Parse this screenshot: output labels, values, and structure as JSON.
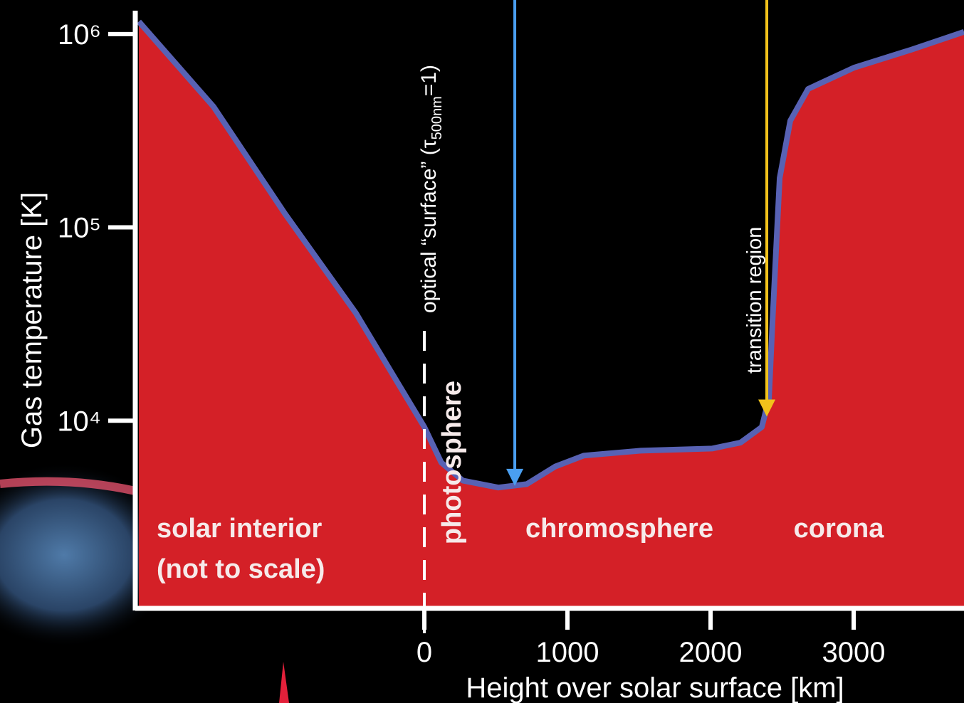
{
  "chart_data": {
    "type": "area",
    "x_label": "Height over solar surface [km]",
    "y_label": "Gas temperature [K]",
    "yscale": "log",
    "x": [
      -1995,
      -1473,
      -975,
      -478,
      -179,
      0,
      119,
      269,
      517,
      716,
      915,
      1114,
      1512,
      2010,
      2209,
      2358,
      2408,
      2433,
      2483,
      2557,
      2682,
      3005,
      3403,
      3771
    ],
    "values": [
      1160000,
      421000,
      118000,
      36000,
      15400,
      9270,
      6070,
      4900,
      4510,
      4700,
      5800,
      6600,
      7000,
      7180,
      7700,
      9270,
      13000,
      33000,
      180000,
      356000,
      520000,
      671000,
      830000,
      1026000
    ],
    "color": "#d42027",
    "line_color": "#5862b4",
    "xlim": [
      -2020,
      3771
    ],
    "ylim": [
      1070,
      1500000
    ],
    "xticks": [
      0,
      1000,
      2000,
      3000
    ],
    "yticks": [
      {
        "value": 10000,
        "label": "10⁴"
      },
      {
        "value": 100000,
        "label": "10⁵"
      },
      {
        "value": 1000000,
        "label": "10⁶"
      }
    ],
    "surface_marker": {
      "x": 0,
      "parts": [
        "optical “surface” (τ",
        "500nm",
        "=1)"
      ]
    },
    "arrows": [
      {
        "x": 632,
        "y": 4600,
        "color": "#4a9ff0"
      },
      {
        "x": 2393,
        "y": 10500,
        "color": "#f2c21b",
        "label": "transition region"
      }
    ],
    "regions": {
      "interior": [
        "solar interior",
        "(not to scale)"
      ],
      "photosphere": "photosphere",
      "chromosphere": "chromosphere",
      "corona": "corona"
    }
  }
}
